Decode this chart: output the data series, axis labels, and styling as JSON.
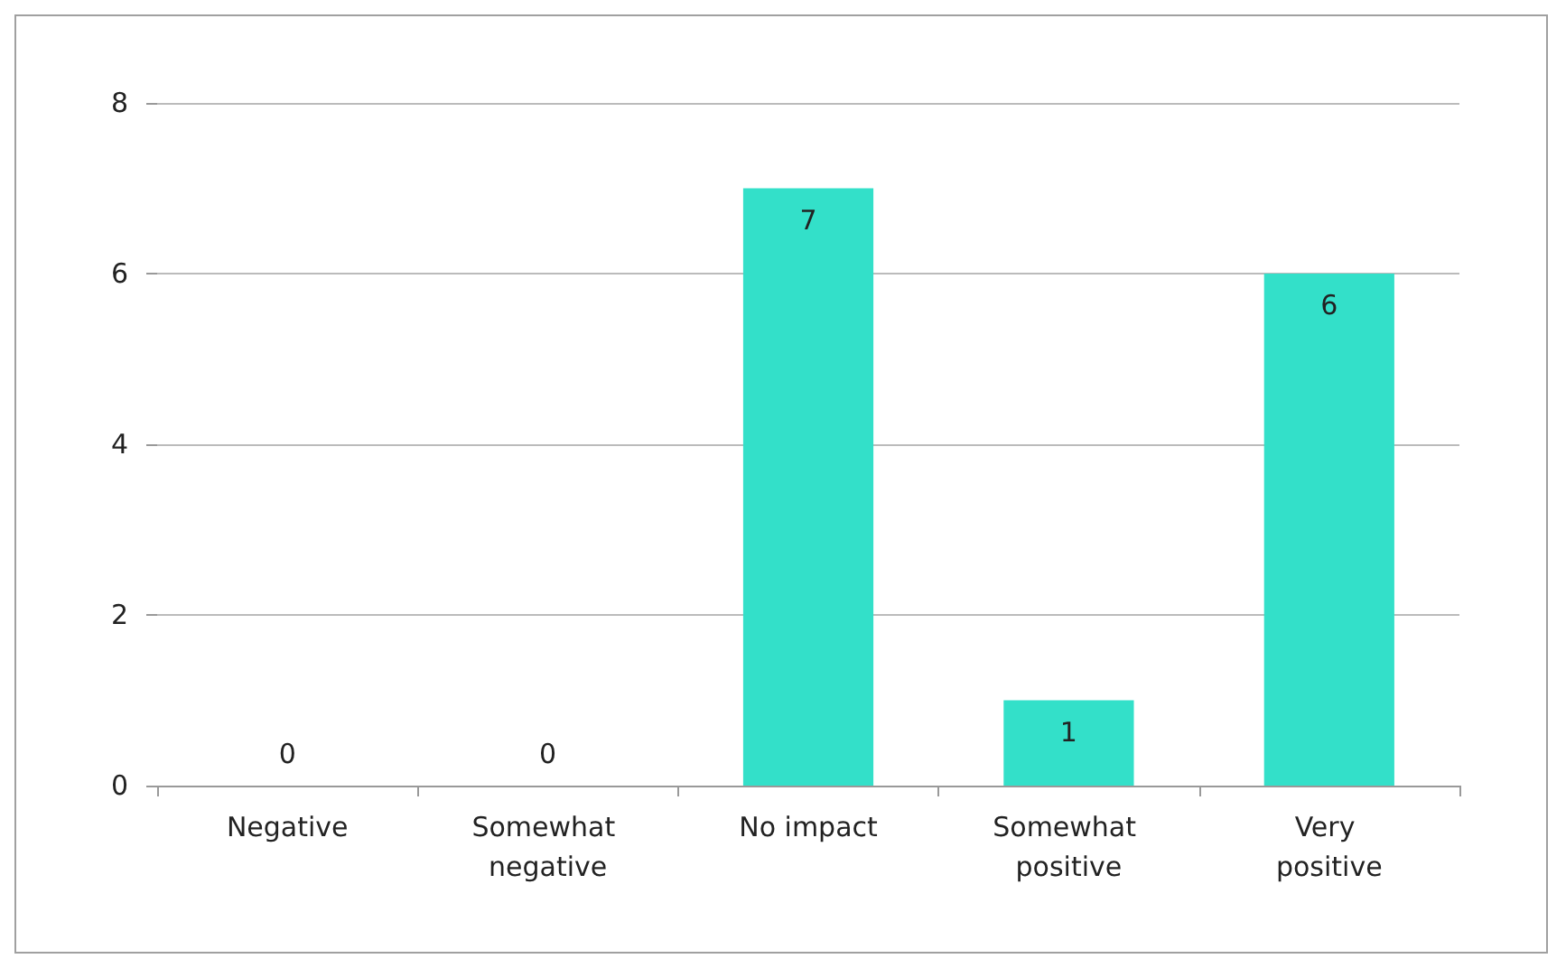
{
  "chart_data": {
    "type": "bar",
    "categories": [
      "Negative",
      "Somewhat negative",
      "No impact",
      "Somewhat positive",
      "Very positive"
    ],
    "values": [
      0,
      0,
      7,
      1,
      6
    ],
    "color": "#33e0c9",
    "ylim": [
      0,
      8
    ],
    "yticks": [
      0,
      2,
      4,
      6,
      8
    ],
    "grid": "y",
    "data_labels": true
  }
}
